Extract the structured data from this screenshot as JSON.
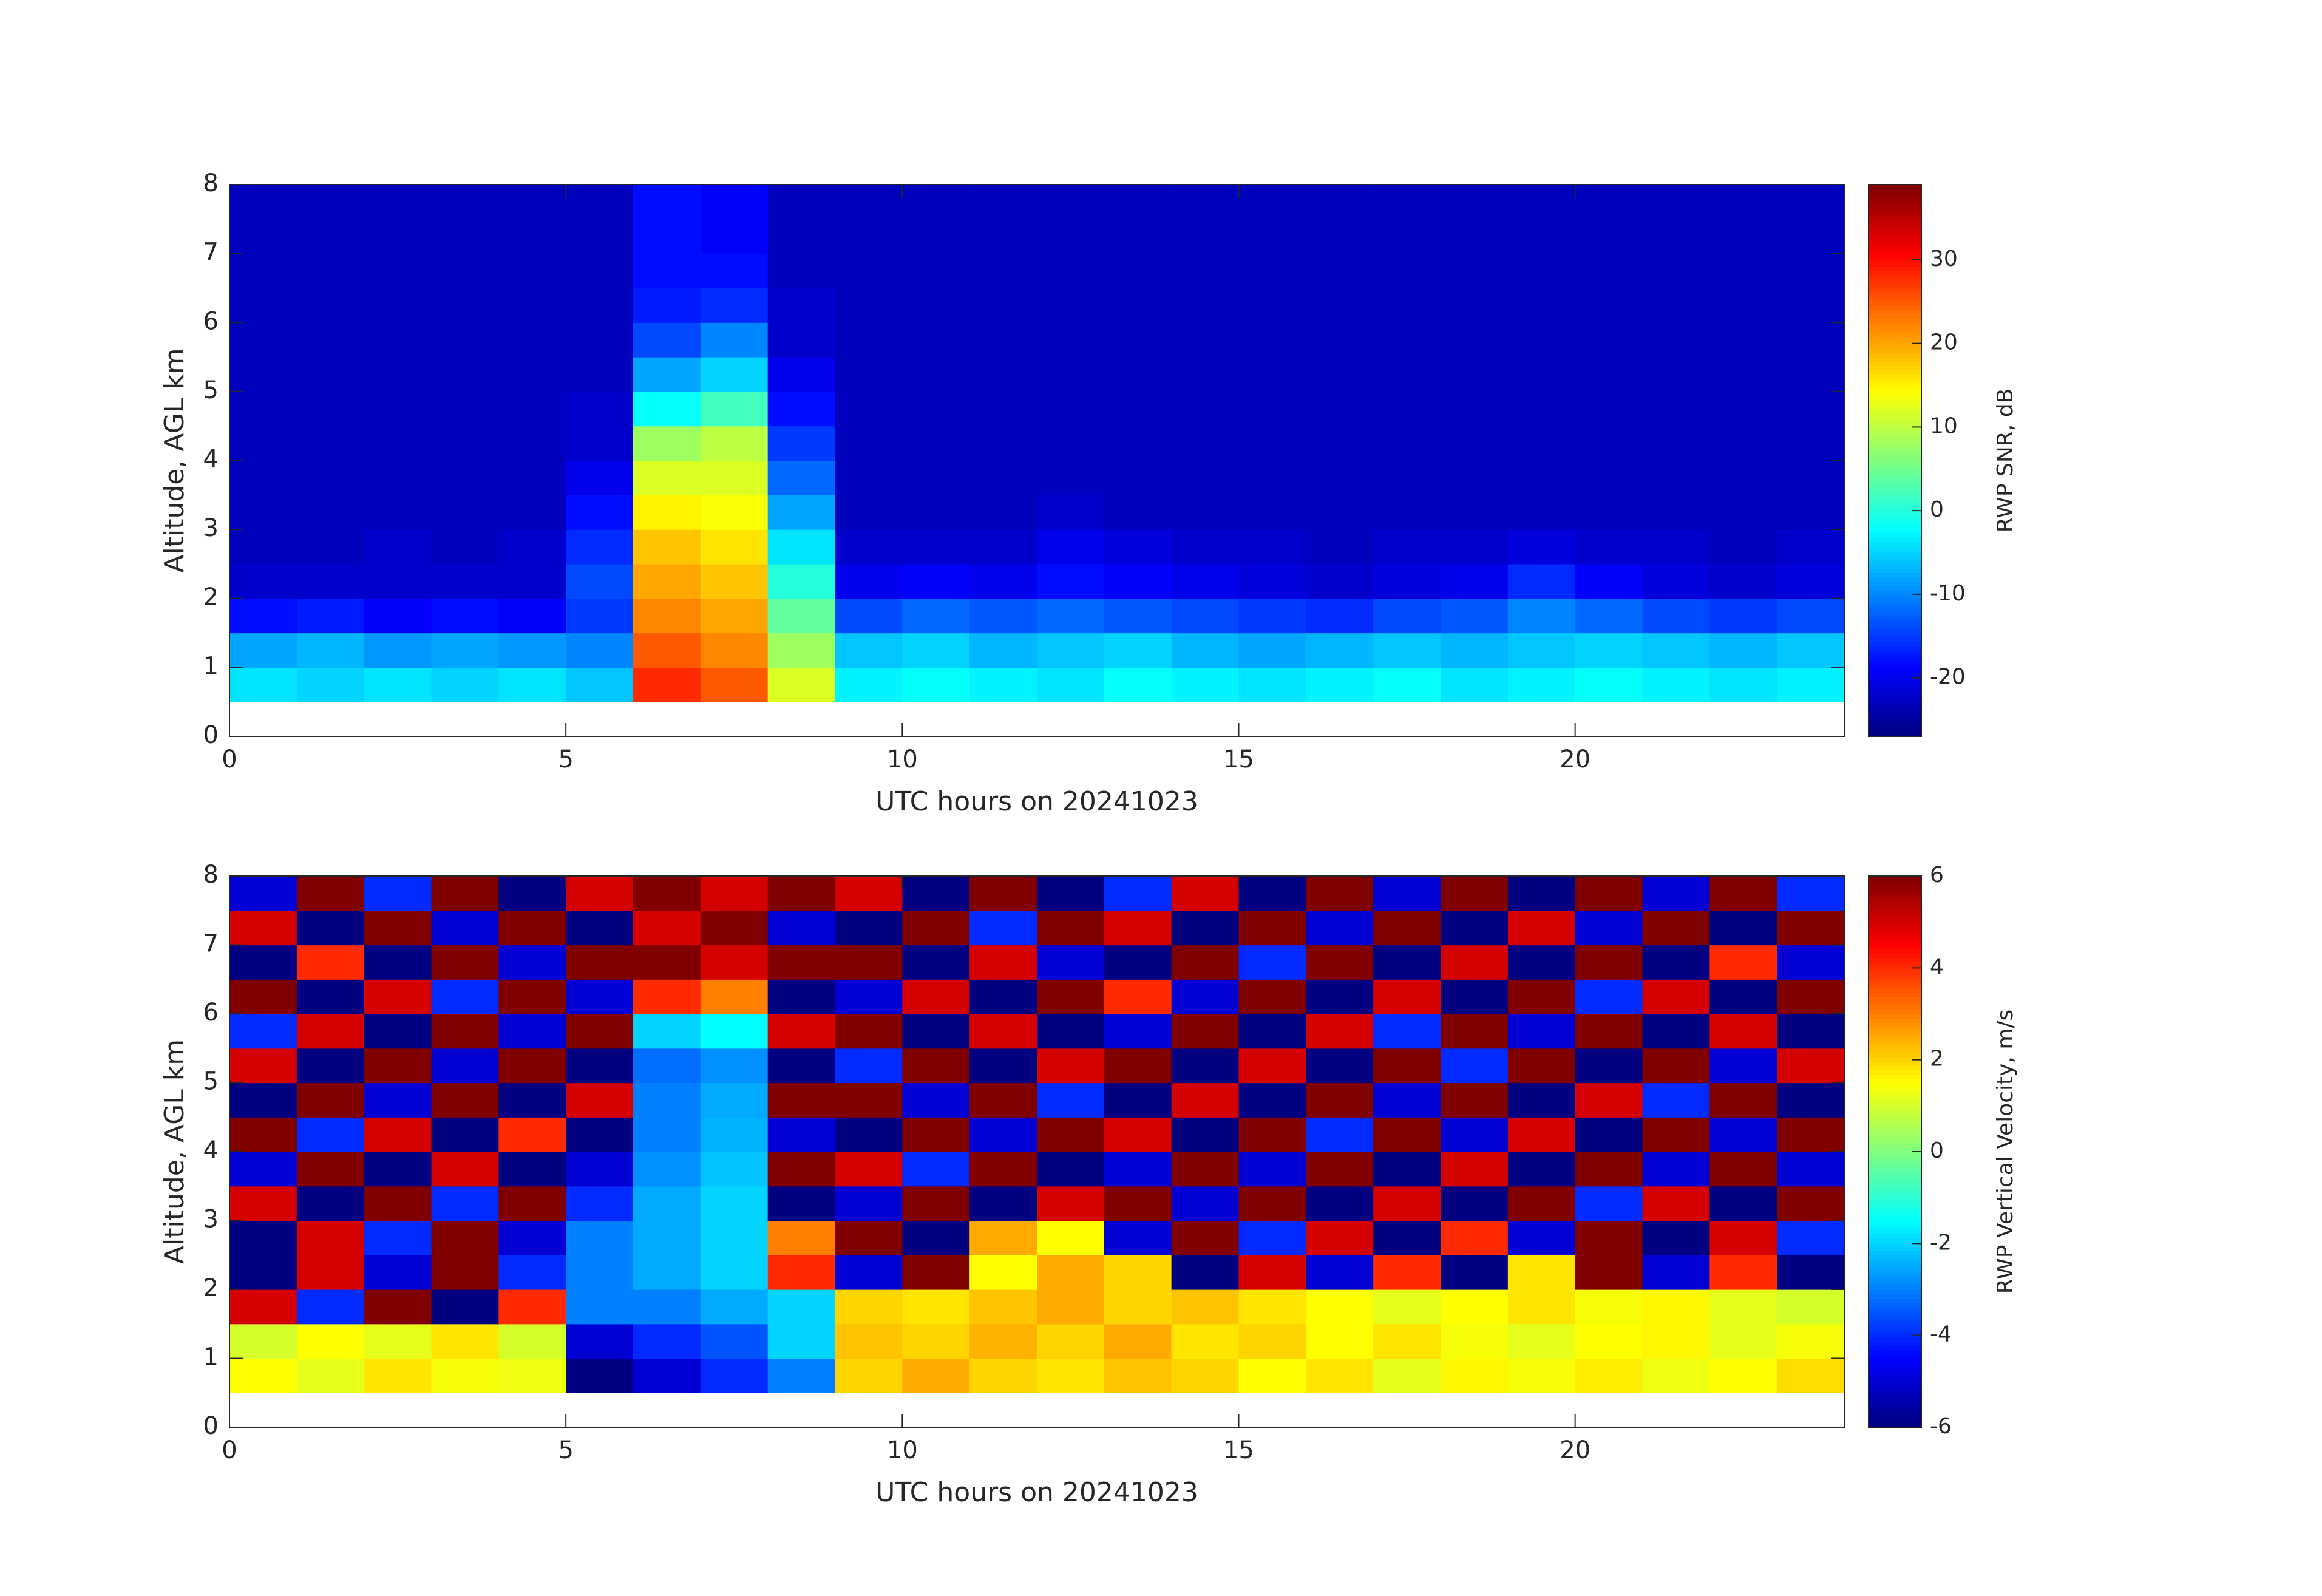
{
  "chart_data": [
    {
      "type": "heatmap",
      "xlabel": "UTC hours on 20241023",
      "ylabel": "Altitude, AGL km",
      "colorbar_label": "RWP SNR, dB",
      "colormap": "jet",
      "xlim": [
        0,
        24
      ],
      "xticks": [
        0,
        5,
        10,
        15,
        20
      ],
      "ylim": [
        0,
        8
      ],
      "yticks": [
        0,
        1,
        2,
        3,
        4,
        5,
        6,
        7,
        8
      ],
      "zlim": [
        -27,
        39
      ],
      "zticks": [
        -20,
        -10,
        0,
        10,
        20,
        30
      ],
      "x_edges": [
        0,
        1,
        2,
        3,
        4,
        5,
        6,
        7,
        8,
        9,
        10,
        11,
        12,
        13,
        14,
        15,
        16,
        17,
        18,
        19,
        20,
        21,
        22,
        23,
        24
      ],
      "y_edges": [
        0.5,
        1,
        1.5,
        2,
        2.5,
        3,
        3.5,
        4,
        4.5,
        5,
        5.5,
        6,
        6.5,
        7,
        7.5,
        8
      ],
      "values": [
        [
          -4,
          -5,
          -4,
          -5,
          -4,
          -6,
          28,
          25,
          12,
          -3,
          -2,
          -3,
          -4,
          -2,
          -3,
          -4,
          -3,
          -2,
          -4,
          -3,
          -2,
          -3,
          -4,
          -3
        ],
        [
          -8,
          -7,
          -9,
          -8,
          -9,
          -10,
          25,
          22,
          8,
          -6,
          -5,
          -7,
          -6,
          -5,
          -7,
          -8,
          -7,
          -6,
          -7,
          -6,
          -5,
          -6,
          -7,
          -6
        ],
        [
          -18,
          -17,
          -19,
          -18,
          -19,
          -15,
          22,
          20,
          4,
          -14,
          -12,
          -13,
          -12,
          -13,
          -14,
          -15,
          -16,
          -14,
          -13,
          -10,
          -12,
          -14,
          -15,
          -14
        ],
        [
          -22,
          -22,
          -22,
          -22,
          -22,
          -14,
          20,
          18,
          0,
          -20,
          -19,
          -20,
          -18,
          -19,
          -20,
          -21,
          -22,
          -21,
          -20,
          -16,
          -19,
          -21,
          -22,
          -21
        ],
        [
          -23,
          -23,
          -22,
          -23,
          -22,
          -16,
          18,
          16,
          -4,
          -22,
          -22,
          -22,
          -20,
          -21,
          -22,
          -22,
          -23,
          -22,
          -22,
          -21,
          -22,
          -22,
          -23,
          -22
        ],
        [
          -23,
          -23,
          -23,
          -23,
          -23,
          -18,
          15,
          14,
          -8,
          -23,
          -23,
          -23,
          -22,
          -23,
          -23,
          -23,
          -23,
          -23,
          -23,
          -23,
          -23,
          -23,
          -23,
          -23
        ],
        [
          -23,
          -23,
          -23,
          -23,
          -23,
          -20,
          12,
          12,
          -12,
          -23,
          -23,
          -23,
          -23,
          -23,
          -23,
          -23,
          -23,
          -23,
          -23,
          -23,
          -23,
          -23,
          -23,
          -23
        ],
        [
          -23,
          -23,
          -23,
          -23,
          -23,
          -22,
          8,
          10,
          -15,
          -23,
          -23,
          -23,
          -23,
          -23,
          -23,
          -23,
          -23,
          -23,
          -23,
          -23,
          -23,
          -23,
          -23,
          -23
        ],
        [
          -23,
          -23,
          -23,
          -23,
          -23,
          -22,
          -2,
          2,
          -18,
          -23,
          -23,
          -23,
          -23,
          -23,
          -23,
          -23,
          -23,
          -23,
          -23,
          -23,
          -23,
          -23,
          -23,
          -23
        ],
        [
          -23,
          -23,
          -23,
          -23,
          -23,
          -23,
          -8,
          -5,
          -20,
          -23,
          -23,
          -23,
          -23,
          -23,
          -23,
          -23,
          -23,
          -23,
          -23,
          -23,
          -23,
          -23,
          -23,
          -23
        ],
        [
          -23,
          -23,
          -23,
          -23,
          -23,
          -23,
          -14,
          -10,
          -22,
          -23,
          -23,
          -23,
          -23,
          -23,
          -23,
          -23,
          -23,
          -23,
          -23,
          -23,
          -23,
          -23,
          -23,
          -23
        ],
        [
          -23,
          -23,
          -23,
          -23,
          -23,
          -23,
          -17,
          -16,
          -22,
          -23,
          -23,
          -23,
          -23,
          -23,
          -23,
          -23,
          -23,
          -23,
          -23,
          -23,
          -23,
          -23,
          -23,
          -23
        ],
        [
          -23,
          -23,
          -23,
          -23,
          -23,
          -23,
          -18,
          -18,
          -23,
          -23,
          -23,
          -23,
          -23,
          -23,
          -23,
          -23,
          -23,
          -23,
          -23,
          -23,
          -23,
          -23,
          -23,
          -23
        ],
        [
          -23,
          -23,
          -23,
          -23,
          -23,
          -23,
          -18,
          -19,
          -23,
          -23,
          -23,
          -23,
          -23,
          -23,
          -23,
          -23,
          -23,
          -23,
          -23,
          -23,
          -23,
          -23,
          -23,
          -23
        ],
        [
          -23,
          -23,
          -23,
          -23,
          -23,
          -23,
          -18,
          -19,
          -23,
          -23,
          -23,
          -23,
          -23,
          -23,
          -23,
          -23,
          -23,
          -23,
          -23,
          -23,
          -23,
          -23,
          -23,
          -23
        ]
      ]
    },
    {
      "type": "heatmap",
      "xlabel": "UTC hours on 20241023",
      "ylabel": "Altitude, AGL km",
      "colorbar_label": "RWP Vertical Velocity, m/s",
      "colormap": "jet",
      "xlim": [
        0,
        24
      ],
      "xticks": [
        0,
        5,
        10,
        15,
        20
      ],
      "ylim": [
        0,
        8
      ],
      "yticks": [
        0,
        1,
        2,
        3,
        4,
        5,
        6,
        7,
        8
      ],
      "zlim": [
        -6,
        6
      ],
      "zticks": [
        -6,
        -4,
        -2,
        0,
        2,
        4,
        6
      ],
      "x_edges": [
        0,
        1,
        2,
        3,
        4,
        5,
        6,
        7,
        8,
        9,
        10,
        11,
        12,
        13,
        14,
        15,
        16,
        17,
        18,
        19,
        20,
        21,
        22,
        23,
        24
      ],
      "y_edges": [
        0.5,
        1,
        1.5,
        2,
        2.5,
        3,
        3.5,
        4,
        4.5,
        5,
        5.5,
        6,
        6.5,
        7,
        7.5,
        8
      ],
      "values": [
        [
          1.5,
          1.2,
          1.8,
          1.4,
          1.3,
          -6,
          -5,
          -4,
          -3,
          2,
          2.5,
          2,
          1.8,
          2.2,
          2,
          1.5,
          1.8,
          1.2,
          1.6,
          1.4,
          1.7,
          1.3,
          1.5,
          1.9
        ],
        [
          1,
          1.5,
          1.2,
          1.8,
          1,
          -5,
          -4,
          -3.5,
          -2,
          2.2,
          2,
          2.4,
          2,
          2.5,
          1.8,
          2,
          1.5,
          1.8,
          1.4,
          1.2,
          1.5,
          1.6,
          1.2,
          1.4
        ],
        [
          5,
          -4,
          6,
          -6,
          4,
          -3,
          -3,
          -2.5,
          -2,
          2,
          1.8,
          2.2,
          2.5,
          2,
          2.2,
          1.8,
          1.5,
          1.2,
          1.5,
          1.8,
          1.4,
          1.6,
          1.2,
          1
        ],
        [
          -6,
          5,
          -5,
          6,
          -4,
          -3,
          -2.5,
          -2,
          4,
          -5,
          6,
          1.5,
          2.5,
          2,
          -6,
          5,
          -5,
          4,
          -6,
          1.8,
          6,
          -5,
          4,
          -6
        ],
        [
          -6,
          5,
          -4,
          6,
          -5,
          -3,
          -2.5,
          -2,
          3,
          6,
          -6,
          2.5,
          1.5,
          -5,
          6,
          -4,
          5,
          -6,
          4,
          -5,
          6,
          -6,
          5,
          -4
        ],
        [
          5,
          -6,
          6,
          -4,
          6,
          -4,
          -2.5,
          -2,
          -6,
          -5,
          6,
          -6,
          5,
          6,
          -5,
          6,
          -6,
          5,
          -6,
          6,
          -4,
          5,
          -6,
          6
        ],
        [
          -5,
          6,
          -6,
          5,
          -6,
          -5,
          -2.8,
          -2.2,
          6,
          5,
          -4,
          6,
          -6,
          -5,
          6,
          -5,
          6,
          -6,
          5,
          -6,
          6,
          -5,
          6,
          -5
        ],
        [
          6,
          -4,
          5,
          -6,
          4,
          -6,
          -3,
          -2.4,
          -5,
          -6,
          6,
          -5,
          6,
          5,
          -6,
          6,
          -4,
          6,
          -5,
          5,
          -6,
          6,
          -5,
          6
        ],
        [
          -6,
          6,
          -5,
          6,
          -6,
          5,
          -3,
          -2.5,
          6,
          6,
          -5,
          6,
          -4,
          -6,
          5,
          -6,
          6,
          -5,
          6,
          -6,
          5,
          -4,
          6,
          -6
        ],
        [
          5,
          -6,
          6,
          -5,
          6,
          -6,
          -3.2,
          -2.8,
          -6,
          -4,
          6,
          -6,
          5,
          6,
          -6,
          5,
          -6,
          6,
          -4,
          6,
          -6,
          6,
          -5,
          5
        ],
        [
          -4,
          5,
          -6,
          6,
          -5,
          6,
          -2,
          -1.5,
          5,
          6,
          -6,
          5,
          -6,
          -5,
          6,
          -6,
          5,
          -4,
          6,
          -5,
          6,
          -6,
          5,
          -6
        ],
        [
          6,
          -6,
          5,
          -4,
          6,
          -5,
          4,
          3,
          -6,
          -5,
          5,
          -6,
          6,
          4,
          -5,
          6,
          -6,
          5,
          -6,
          6,
          -4,
          5,
          -6,
          6
        ],
        [
          -6,
          4,
          -6,
          6,
          -5,
          6,
          6,
          5,
          6,
          6,
          -6,
          5,
          -5,
          -6,
          6,
          -4,
          6,
          -6,
          5,
          -6,
          6,
          -6,
          4,
          -5
        ],
        [
          5,
          -6,
          6,
          -5,
          6,
          -6,
          5,
          6,
          -5,
          -6,
          6,
          -4,
          6,
          5,
          -6,
          6,
          -5,
          6,
          -6,
          5,
          -5,
          6,
          -6,
          6
        ],
        [
          -5,
          6,
          -4,
          6,
          -6,
          5,
          6,
          5,
          6,
          5,
          -6,
          6,
          -6,
          -4,
          5,
          -6,
          6,
          -5,
          6,
          -6,
          6,
          -5,
          6,
          -4
        ]
      ]
    }
  ]
}
